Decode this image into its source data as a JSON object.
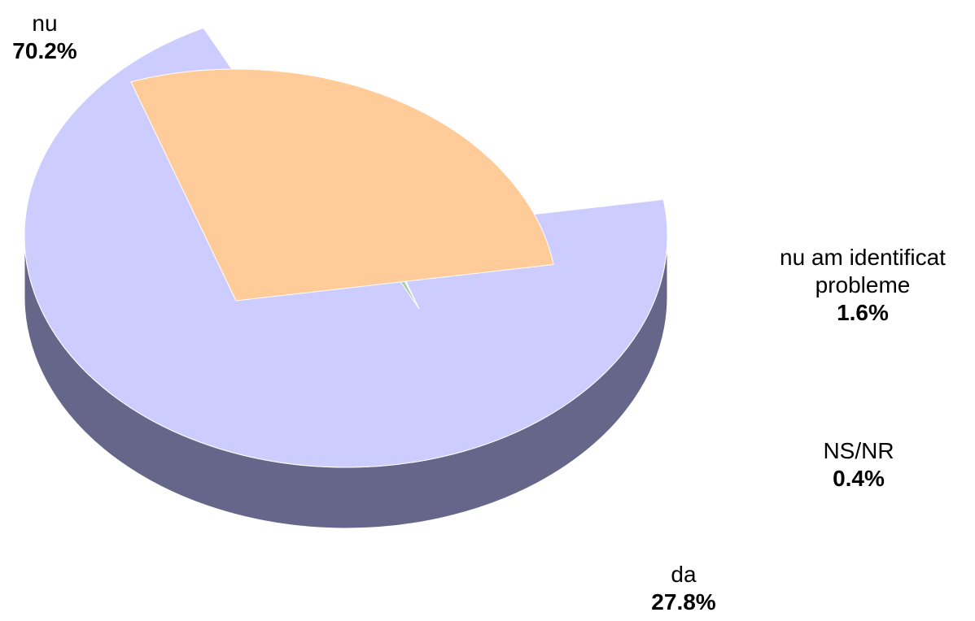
{
  "chart_data": {
    "type": "pie",
    "title": "",
    "slices": [
      {
        "label": "nu",
        "value": 70.2,
        "pct_text": "70.2%",
        "color": "#ccccff",
        "side_color": "#66668a"
      },
      {
        "label": "nu am identificat probleme",
        "value": 1.6,
        "pct_text": "1.6%",
        "color": "#a9cfa9",
        "side_color": "#6b7a55"
      },
      {
        "label": "NS/NR",
        "value": 0.4,
        "pct_text": "0.4%",
        "color": "#e6e0a0",
        "side_color": "#8a8a55"
      },
      {
        "label": "da",
        "value": 27.8,
        "pct_text": "27.8%",
        "color": "#ffcc99",
        "side_color": "#806548"
      }
    ]
  },
  "labels": {
    "nu": {
      "name": "nu",
      "pct": "70.2%"
    },
    "nuam": {
      "name_line1": "nu am identificat",
      "name_line2": "probleme",
      "pct": "1.6%"
    },
    "nsnr": {
      "name": "NS/NR",
      "pct": "0.4%"
    },
    "da": {
      "name": "da",
      "pct": "27.8%"
    }
  }
}
